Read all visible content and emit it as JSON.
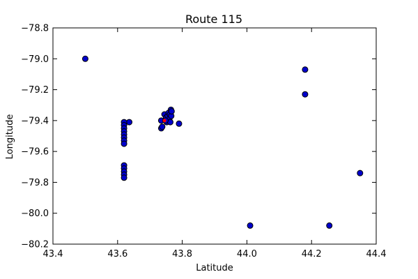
{
  "chart_data": {
    "type": "scatter",
    "title": "Route 115",
    "xlabel": "Latitude",
    "ylabel": "Longitude",
    "xlim": [
      43.4,
      44.4
    ],
    "ylim": [
      -80.2,
      -78.8
    ],
    "xticks": [
      43.4,
      43.6,
      43.8,
      44.0,
      44.2,
      44.4
    ],
    "yticks": [
      -80.2,
      -80.0,
      -79.8,
      -79.6,
      -79.4,
      -79.2,
      -79.0,
      -78.8
    ],
    "xtick_labels": [
      "43.4",
      "43.6",
      "43.8",
      "44.0",
      "44.2",
      "44.4"
    ],
    "ytick_labels": [
      "−80.2",
      "−80.0",
      "−79.8",
      "−79.6",
      "−79.4",
      "−79.2",
      "−79.0",
      "−78.8"
    ],
    "grid": false,
    "marker_color": "#0000cc",
    "highlight_color": "#ff0000",
    "series": [
      {
        "values": [
          {
            "x": 43.5,
            "y": -79.0
          },
          {
            "x": 44.18,
            "y": -79.07
          },
          {
            "x": 44.18,
            "y": -79.23
          },
          {
            "x": 44.35,
            "y": -79.74
          },
          {
            "x": 44.01,
            "y": -80.08
          },
          {
            "x": 44.255,
            "y": -80.08
          },
          {
            "x": 43.79,
            "y": -79.42
          },
          {
            "x": 43.636,
            "y": -79.41
          },
          {
            "x": 43.62,
            "y": -79.41
          },
          {
            "x": 43.62,
            "y": -79.43
          },
          {
            "x": 43.62,
            "y": -79.45
          },
          {
            "x": 43.62,
            "y": -79.47
          },
          {
            "x": 43.62,
            "y": -79.49
          },
          {
            "x": 43.62,
            "y": -79.51
          },
          {
            "x": 43.62,
            "y": -79.53
          },
          {
            "x": 43.62,
            "y": -79.55
          },
          {
            "x": 43.62,
            "y": -79.69
          },
          {
            "x": 43.62,
            "y": -79.71
          },
          {
            "x": 43.62,
            "y": -79.73
          },
          {
            "x": 43.62,
            "y": -79.75
          },
          {
            "x": 43.62,
            "y": -79.77
          },
          {
            "x": 43.735,
            "y": -79.4
          },
          {
            "x": 43.735,
            "y": -79.45
          },
          {
            "x": 43.738,
            "y": -79.44
          },
          {
            "x": 43.745,
            "y": -79.36
          },
          {
            "x": 43.75,
            "y": -79.38
          },
          {
            "x": 43.752,
            "y": -79.41
          },
          {
            "x": 43.755,
            "y": -79.37
          },
          {
            "x": 43.758,
            "y": -79.35
          },
          {
            "x": 43.76,
            "y": -79.39
          },
          {
            "x": 43.762,
            "y": -79.36
          },
          {
            "x": 43.763,
            "y": -79.41
          },
          {
            "x": 43.765,
            "y": -79.33
          },
          {
            "x": 43.766,
            "y": -79.37
          },
          {
            "x": 43.767,
            "y": -79.34
          },
          {
            "x": 43.748,
            "y": -79.4
          }
        ]
      }
    ],
    "highlight_point": {
      "x": 43.745,
      "y": -79.4
    }
  }
}
